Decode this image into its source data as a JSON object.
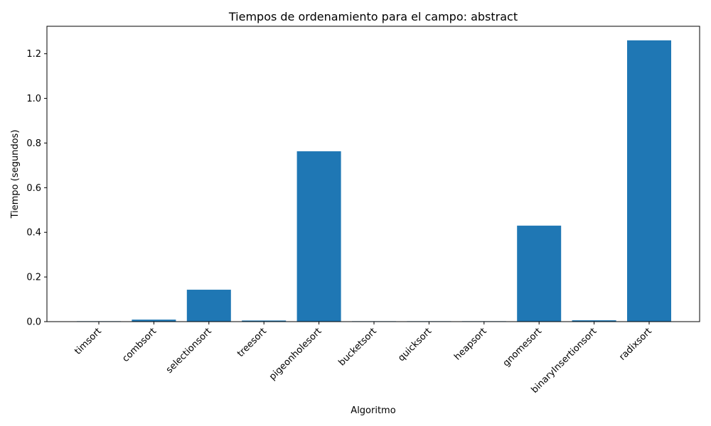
{
  "chart_data": {
    "type": "bar",
    "title": "Tiempos de ordenamiento para el campo: abstract",
    "xlabel": "Algoritmo",
    "ylabel": "Tiempo (segundos)",
    "categories": [
      "timsort",
      "combsort",
      "selectionsort",
      "treesort",
      "pigeonholesort",
      "bucketsort",
      "quicksort",
      "heapsort",
      "gnomesort",
      "binaryInsertionsort",
      "radixsort"
    ],
    "values": [
      0.002,
      0.009,
      0.143,
      0.005,
      0.763,
      0.002,
      0.002,
      0.002,
      0.43,
      0.006,
      1.26
    ],
    "ylim": [
      0,
      1.323
    ],
    "yticks": [
      0.0,
      0.2,
      0.4,
      0.6,
      0.8,
      1.0,
      1.2
    ],
    "ytick_labels": [
      "0.0",
      "0.2",
      "0.4",
      "0.6",
      "0.8",
      "1.0",
      "1.2"
    ],
    "bar_color": "#1f77b4",
    "grid": false,
    "legend": "none"
  }
}
